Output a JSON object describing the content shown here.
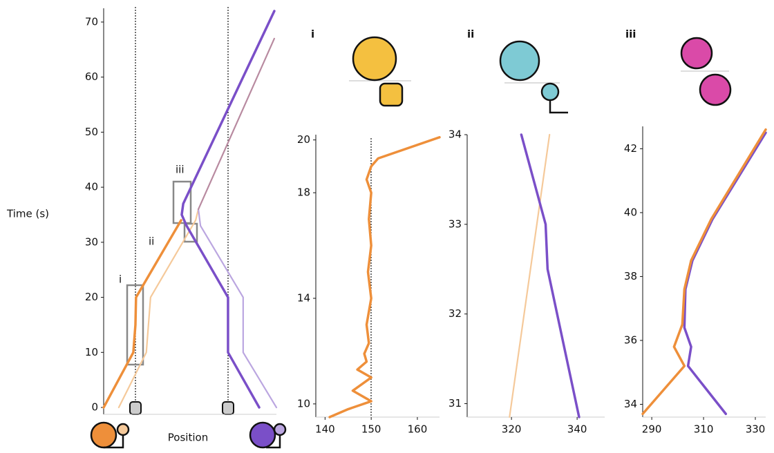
{
  "chart_data": [
    {
      "type": "line",
      "ylabel": "Time (s)",
      "xlabel": "Position",
      "annotations": [
        "i",
        "ii",
        "iii"
      ],
      "xlim": [
        45,
        616
      ],
      "ylim": [
        -1.25,
        72.5
      ],
      "yticks": [
        0,
        10,
        20,
        30,
        40,
        50,
        60,
        70
      ],
      "series": [
        {
          "color": "#f5c99a",
          "x": [
            95,
            186,
            200,
            349,
            358
          ],
          "values": [
            0,
            10,
            20,
            34,
            36
          ]
        },
        {
          "color": "#bba6e0",
          "x": [
            616,
            506,
            506,
            365,
            358
          ],
          "values": [
            0,
            10,
            20,
            33,
            36
          ]
        },
        {
          "color": "#b88aa0",
          "x": [
            358,
            609
          ],
          "values": [
            36,
            67
          ]
        },
        {
          "color": "#ee8f3a",
          "x": [
            45,
            143,
            150,
            152,
            301
          ],
          "values": [
            0,
            10,
            15,
            20,
            34
          ]
        },
        {
          "color": "#7a4fc8",
          "x": [
            559,
            456,
            456,
            319,
            303,
            308,
            609
          ],
          "values": [
            0,
            10,
            20,
            33,
            35,
            37,
            72
          ]
        }
      ]
    },
    {
      "type": "line",
      "title": "i",
      "xlim": [
        138,
        164.8
      ],
      "ylim": [
        9.5,
        20.2
      ],
      "xticks": [
        140,
        150,
        160
      ],
      "yticks": [
        10,
        14,
        18,
        20
      ],
      "series": [
        {
          "color": "#ee8f3a",
          "x": [
            141,
            145,
            150,
            146,
            150,
            147,
            149,
            148.5,
            149.5,
            149,
            150,
            149.3,
            150,
            149.5,
            150,
            149,
            150,
            151.5,
            164.8
          ],
          "values": [
            9.5,
            9.8,
            10.1,
            10.5,
            11,
            11.3,
            11.6,
            11.9,
            12.3,
            13,
            14,
            15,
            16,
            17,
            18,
            18.5,
            19,
            19.3,
            20.1
          ]
        }
      ]
    },
    {
      "type": "line",
      "title": "ii",
      "xlim": [
        306.5,
        348.4
      ],
      "ylim": [
        30.85,
        34
      ],
      "xticks": [
        320,
        340
      ],
      "yticks": [
        31,
        32,
        33,
        34
      ],
      "series": [
        {
          "color": "#f5c99a",
          "x": [
            319.4,
            331.6
          ],
          "values": [
            30.85,
            34
          ]
        },
        {
          "color": "#7a4fc8",
          "x": [
            323,
            330.4,
            331,
            340.6
          ],
          "values": [
            34,
            33,
            32.5,
            30.85
          ]
        }
      ]
    },
    {
      "type": "line",
      "title": "iii",
      "xlim": [
        286.5,
        334
      ],
      "ylim": [
        33.6,
        42.7
      ],
      "xticks": [
        290,
        310,
        330
      ],
      "yticks": [
        34,
        36,
        38,
        40,
        42
      ],
      "series": [
        {
          "color": "#7a4fc8",
          "x": [
            318.6,
            304,
            305.2,
            302.6,
            303,
            305.7,
            313.5,
            334
          ],
          "values": [
            33.7,
            35.2,
            35.8,
            36.4,
            37.6,
            38.5,
            39.8,
            42.5
          ]
        },
        {
          "color": "#ee8f3a",
          "x": [
            286.5,
            302.6,
            298.6,
            301.8,
            302.6,
            305.2,
            313,
            334
          ],
          "values": [
            33.7,
            35.2,
            35.8,
            36.5,
            37.6,
            38.5,
            39.8,
            42.6
          ]
        }
      ]
    }
  ]
}
